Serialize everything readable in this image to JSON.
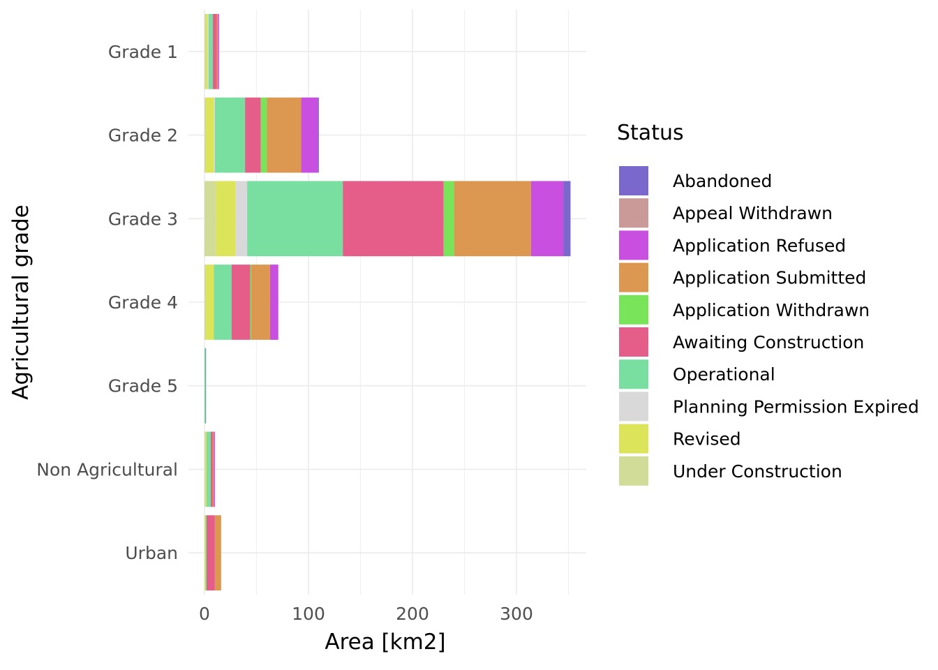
{
  "chart_data": {
    "type": "bar",
    "orientation": "horizontal",
    "stacked": true,
    "xlabel": "Area [km2]",
    "ylabel": "Agricultural grade",
    "xlim": [
      0,
      370
    ],
    "x_ticks": [
      0,
      100,
      200,
      300
    ],
    "grid": true,
    "legend_title": "Status",
    "legend_position": "right",
    "categories": [
      "Grade 1",
      "Grade 2",
      "Grade 3",
      "Grade 4",
      "Grade 5",
      "Non Agricultural",
      "Urban"
    ],
    "series": [
      {
        "name": "Abandoned",
        "color": "#7b68cc",
        "values": [
          0,
          1,
          7,
          0,
          0.5,
          0,
          0
        ]
      },
      {
        "name": "Appeal Withdrawn",
        "color": "#c99a97",
        "values": [
          0,
          0,
          0,
          0,
          0,
          0,
          0
        ]
      },
      {
        "name": "Application Refused",
        "color": "#c84fdf",
        "values": [
          1,
          16,
          31,
          8,
          0,
          1,
          0
        ]
      },
      {
        "name": "Application Submitted",
        "color": "#dc9850",
        "values": [
          1,
          33,
          74,
          18,
          0,
          1,
          6
        ]
      },
      {
        "name": "Application Withdrawn",
        "color": "#79e35a",
        "values": [
          0,
          6,
          10,
          1,
          0,
          0,
          0
        ]
      },
      {
        "name": "Awaiting Construction",
        "color": "#e55e8a",
        "values": [
          4,
          15,
          97,
          18,
          0,
          2,
          8
        ]
      },
      {
        "name": "Operational",
        "color": "#79dfa0",
        "values": [
          4,
          29,
          92,
          17,
          1,
          4,
          1
        ]
      },
      {
        "name": "Planning Permission Expired",
        "color": "#d9d9d9",
        "values": [
          1,
          1,
          11,
          0,
          0,
          0,
          0
        ]
      },
      {
        "name": "Revised",
        "color": "#dce45a",
        "values": [
          2,
          8,
          19,
          8,
          0,
          1,
          1
        ]
      },
      {
        "name": "Under Construction",
        "color": "#d1dc98",
        "values": [
          1,
          1,
          11,
          1,
          0,
          1,
          0
        ]
      }
    ]
  }
}
